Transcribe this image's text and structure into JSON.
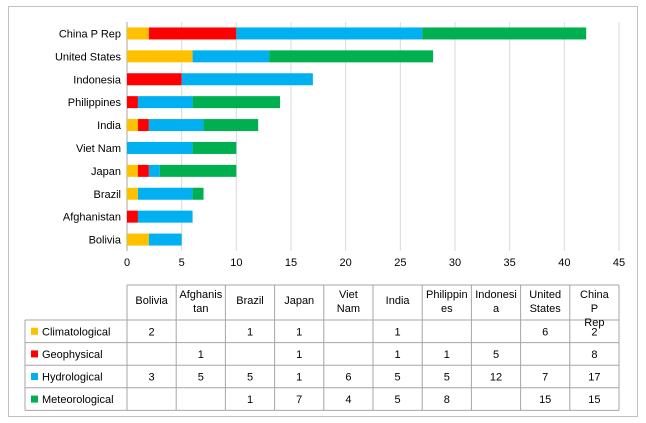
{
  "chart_data": {
    "type": "bar",
    "orientation": "horizontal",
    "stacked": true,
    "categories": [
      "China P Rep",
      "United States",
      "Indonesia",
      "Philippines",
      "India",
      "Viet Nam",
      "Japan",
      "Brazil",
      "Afghanistan",
      "Bolivia"
    ],
    "series": [
      {
        "name": "Climatological",
        "color": "#FFC000",
        "values": [
          2,
          6,
          0,
          0,
          1,
          0,
          1,
          1,
          0,
          2
        ]
      },
      {
        "name": "Geophysical",
        "color": "#FF0000",
        "values": [
          8,
          0,
          5,
          1,
          1,
          0,
          1,
          0,
          1,
          0
        ]
      },
      {
        "name": "Hydrological",
        "color": "#00B0F0",
        "values": [
          17,
          7,
          12,
          5,
          5,
          6,
          1,
          5,
          5,
          3
        ]
      },
      {
        "name": "Meteorological",
        "color": "#00B050",
        "values": [
          15,
          15,
          0,
          8,
          5,
          4,
          7,
          1,
          0,
          0
        ]
      }
    ],
    "xlim": [
      0,
      45
    ],
    "xticks": [
      "0",
      "5",
      "10",
      "15",
      "20",
      "25",
      "30",
      "35",
      "40",
      "45"
    ],
    "grid": true,
    "data_table": {
      "columns": [
        "Bolivia",
        "Afghanis tan",
        "Brazil",
        "Japan",
        "Viet Nam",
        "India",
        "Philippin es",
        "Indonesi a",
        "United States",
        "China P Rep"
      ],
      "rows": [
        {
          "name": "Climatological",
          "cells": [
            "2",
            "",
            "1",
            "1",
            "",
            "1",
            "",
            "",
            "6",
            "2"
          ]
        },
        {
          "name": "Geophysical",
          "cells": [
            "",
            "1",
            "",
            "1",
            "",
            "1",
            "1",
            "5",
            "",
            "8"
          ]
        },
        {
          "name": "Hydrological",
          "cells": [
            "3",
            "5",
            "5",
            "1",
            "6",
            "5",
            "5",
            "12",
            "7",
            "17"
          ]
        },
        {
          "name": "Meteorological",
          "cells": [
            "",
            "",
            "1",
            "7",
            "4",
            "5",
            "8",
            "",
            "15",
            "15"
          ]
        }
      ]
    }
  }
}
